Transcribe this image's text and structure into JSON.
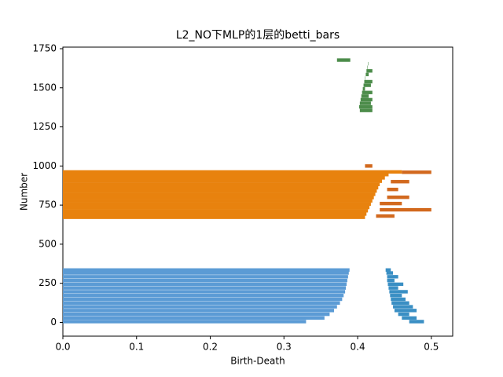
{
  "chart_data": {
    "type": "barcode",
    "title": "L2_NO下MLP的1层的betti_bars",
    "xlabel": "Birth-Death",
    "ylabel": "Number",
    "xlim": [
      0,
      0.529
    ],
    "ylim": [
      -88,
      1760
    ],
    "xticks": [
      {
        "value": 0,
        "label": "0.0"
      },
      {
        "value": 0.1,
        "label": "0.1"
      },
      {
        "value": 0.2,
        "label": "0.2"
      },
      {
        "value": 0.3,
        "label": "0.3"
      },
      {
        "value": 0.4,
        "label": "0.4"
      },
      {
        "value": 0.5,
        "label": "0.5"
      }
    ],
    "yticks": [
      0,
      250,
      500,
      750,
      1000,
      1250,
      1500,
      1750
    ],
    "series": [
      {
        "color": "#5b9bd5",
        "y": [
          5,
          28,
          52,
          76,
          100,
          124,
          148,
          172,
          196,
          220,
          244,
          268,
          292,
          316,
          335
        ],
        "start": [
          0,
          0,
          0,
          0,
          0,
          0,
          0,
          0,
          0,
          0,
          0,
          0,
          0,
          0,
          0
        ],
        "end": [
          0.33,
          0.355,
          0.362,
          0.368,
          0.372,
          0.376,
          0.379,
          0.381,
          0.383,
          0.384,
          0.385,
          0.386,
          0.387,
          0.388,
          0.389
        ]
      },
      {
        "color": "#3a8fc4",
        "y": [
          5,
          28,
          52,
          76,
          100,
          124,
          148,
          172,
          196,
          220,
          244,
          268,
          292,
          316,
          335
        ],
        "start": [
          0.47,
          0.46,
          0.455,
          0.45,
          0.448,
          0.446,
          0.445,
          0.444,
          0.443,
          0.442,
          0.441,
          0.44,
          0.44,
          0.439,
          0.438
        ],
        "end": [
          0.49,
          0.48,
          0.47,
          0.48,
          0.475,
          0.47,
          0.465,
          0.46,
          0.468,
          0.455,
          0.462,
          0.45,
          0.455,
          0.448,
          0.445
        ]
      },
      {
        "color": "#e8820e",
        "y": [
          672,
          693,
          714,
          735,
          756,
          777,
          798,
          819,
          840,
          861,
          882,
          903,
          924,
          945,
          962
        ],
        "start": [
          0,
          0,
          0,
          0,
          0,
          0,
          0,
          0,
          0,
          0,
          0,
          0,
          0,
          0,
          0
        ],
        "end": [
          0.41,
          0.412,
          0.414,
          0.416,
          0.418,
          0.42,
          0.422,
          0.424,
          0.426,
          0.428,
          0.43,
          0.433,
          0.437,
          0.442,
          0.46
        ]
      },
      {
        "color": "#d2691e",
        "y": [
          680,
          720,
          760,
          800,
          850,
          900,
          960,
          1000
        ],
        "start": [
          0.425,
          0.43,
          0.43,
          0.44,
          0.44,
          0.445,
          0.46,
          0.41
        ],
        "end": [
          0.45,
          0.5,
          0.46,
          0.47,
          0.455,
          0.47,
          0.5,
          0.42
        ]
      },
      {
        "color": "#4c8c4a",
        "y": [
          1355,
          1378,
          1401,
          1424,
          1447,
          1470,
          1493,
          1516,
          1539,
          1562,
          1585,
          1608,
          1631,
          1654,
          1677
        ],
        "start": [
          0.403,
          0.402,
          0.403,
          0.404,
          0.405,
          0.406,
          0.407,
          0.408,
          0.409,
          0.41,
          0.411,
          0.412,
          0.413,
          0.414,
          0.372
        ],
        "end": [
          0.42,
          0.42,
          0.418,
          0.42,
          0.415,
          0.42,
          0.41,
          0.418,
          0.42,
          0.41,
          0.415,
          0.42,
          0.41,
          0.405,
          0.39
        ]
      }
    ]
  }
}
